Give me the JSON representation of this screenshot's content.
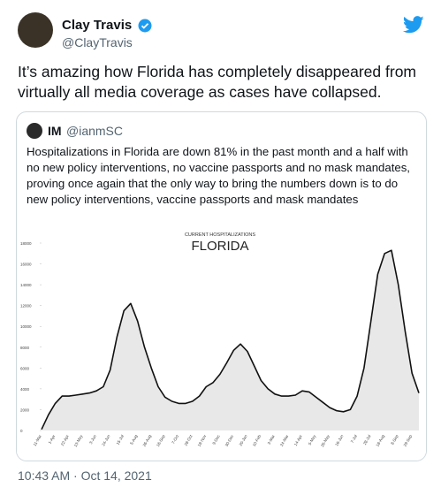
{
  "author": {
    "name": "Clay Travis",
    "handle": "@ClayTravis"
  },
  "text": "It’s amazing how Florida has completely disappeared from virtually all media coverage as cases have collapsed.",
  "quoted_tweet": {
    "author": {
      "name": "IM",
      "handle": "@ianmSC"
    },
    "text": "Hospitalizations in Florida are down 81% in the past month and a half with no new policy interventions, no vaccine passports and no mask mandates, proving once again that the only way to bring the numbers down is to do new policy interventions, vaccine passports and mask mandates",
    "chart_data": {
      "type": "area",
      "subtitle": "CURRENT HOSPITALIZATIONS",
      "title": "FLORIDA",
      "categories": [
        "11-Mar",
        null,
        "1-Apr",
        null,
        "22-Apr",
        null,
        "13-May",
        null,
        "3-Jun",
        null,
        "24-Jun",
        null,
        "15-Jul",
        null,
        "5-Aug",
        null,
        "26-Aug",
        null,
        "16-Sep",
        null,
        "7-Oct",
        null,
        "28-Oct",
        null,
        "18-Nov",
        null,
        "9-Dec",
        null,
        "30-Dec",
        null,
        "20-Jan",
        null,
        "10-Feb",
        null,
        "3-Mar",
        null,
        "24-Mar",
        null,
        "14-Apr",
        null,
        "5-May",
        null,
        "26-May",
        null,
        "16-Jun",
        null,
        "7-Jul",
        null,
        "28-Jul",
        null,
        "18-Aug",
        null,
        "8-Sep",
        null,
        "29-Sep",
        null
      ],
      "values": [
        100,
        1500,
        2600,
        3300,
        3300,
        3400,
        3500,
        3600,
        3800,
        4200,
        5800,
        9000,
        11500,
        12200,
        10500,
        8000,
        6000,
        4200,
        3200,
        2800,
        2600,
        2600,
        2800,
        3300,
        4200,
        4600,
        5400,
        6500,
        7700,
        8300,
        7600,
        6200,
        4800,
        4000,
        3500,
        3300,
        3300,
        3400,
        3800,
        3700,
        3200,
        2700,
        2200,
        1900,
        1800,
        2000,
        3300,
        6000,
        10500,
        15000,
        17000,
        17300,
        14000,
        9500,
        5500,
        3600
      ],
      "color": "#111111",
      "fill_color": "#e8e8e8",
      "ylim": [
        0,
        18000
      ],
      "yticks": [
        0,
        2000,
        4000,
        6000,
        8000,
        10000,
        12000,
        14000,
        16000,
        18000
      ],
      "grid": false
    }
  },
  "timestamp": "10:43 AM · Oct 14, 2021"
}
